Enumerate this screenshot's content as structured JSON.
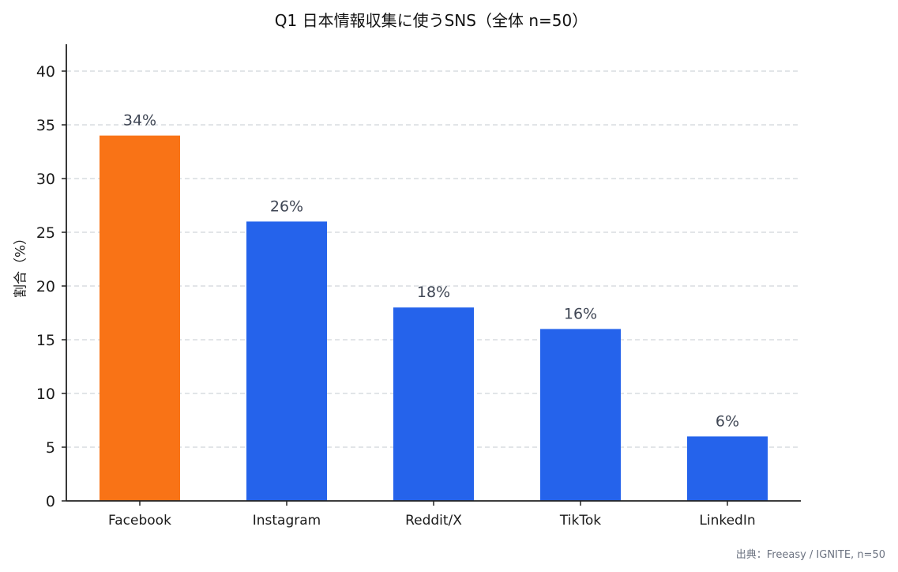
{
  "chart_data": {
    "type": "bar",
    "title": "Q1 日本情報収集に使うSNS（全体 n=50）",
    "xlabel": "",
    "ylabel": "割合（%）",
    "categories": [
      "Facebook",
      "Instagram",
      "Reddit/X",
      "TikTok",
      "LinkedIn"
    ],
    "values": [
      34,
      26,
      18,
      16,
      6
    ],
    "value_labels": [
      "34%",
      "26%",
      "18%",
      "16%",
      "6%"
    ],
    "bar_colors": [
      "#f97316",
      "#2563eb",
      "#2563eb",
      "#2563eb",
      "#2563eb"
    ],
    "ylim": [
      0,
      42.5
    ],
    "yticks": [
      0,
      5,
      10,
      15,
      20,
      25,
      30,
      35,
      40
    ],
    "grid": "horizontal dashed",
    "legend": "none",
    "annotation": "出典：Freeasy / IGNITE, n=50"
  },
  "colors": {
    "highlight": "#f97316",
    "primary": "#2563eb",
    "grid": "#d1d5db",
    "axis": "#222222",
    "value_label": "#3f4654",
    "source": "#6b7280"
  }
}
